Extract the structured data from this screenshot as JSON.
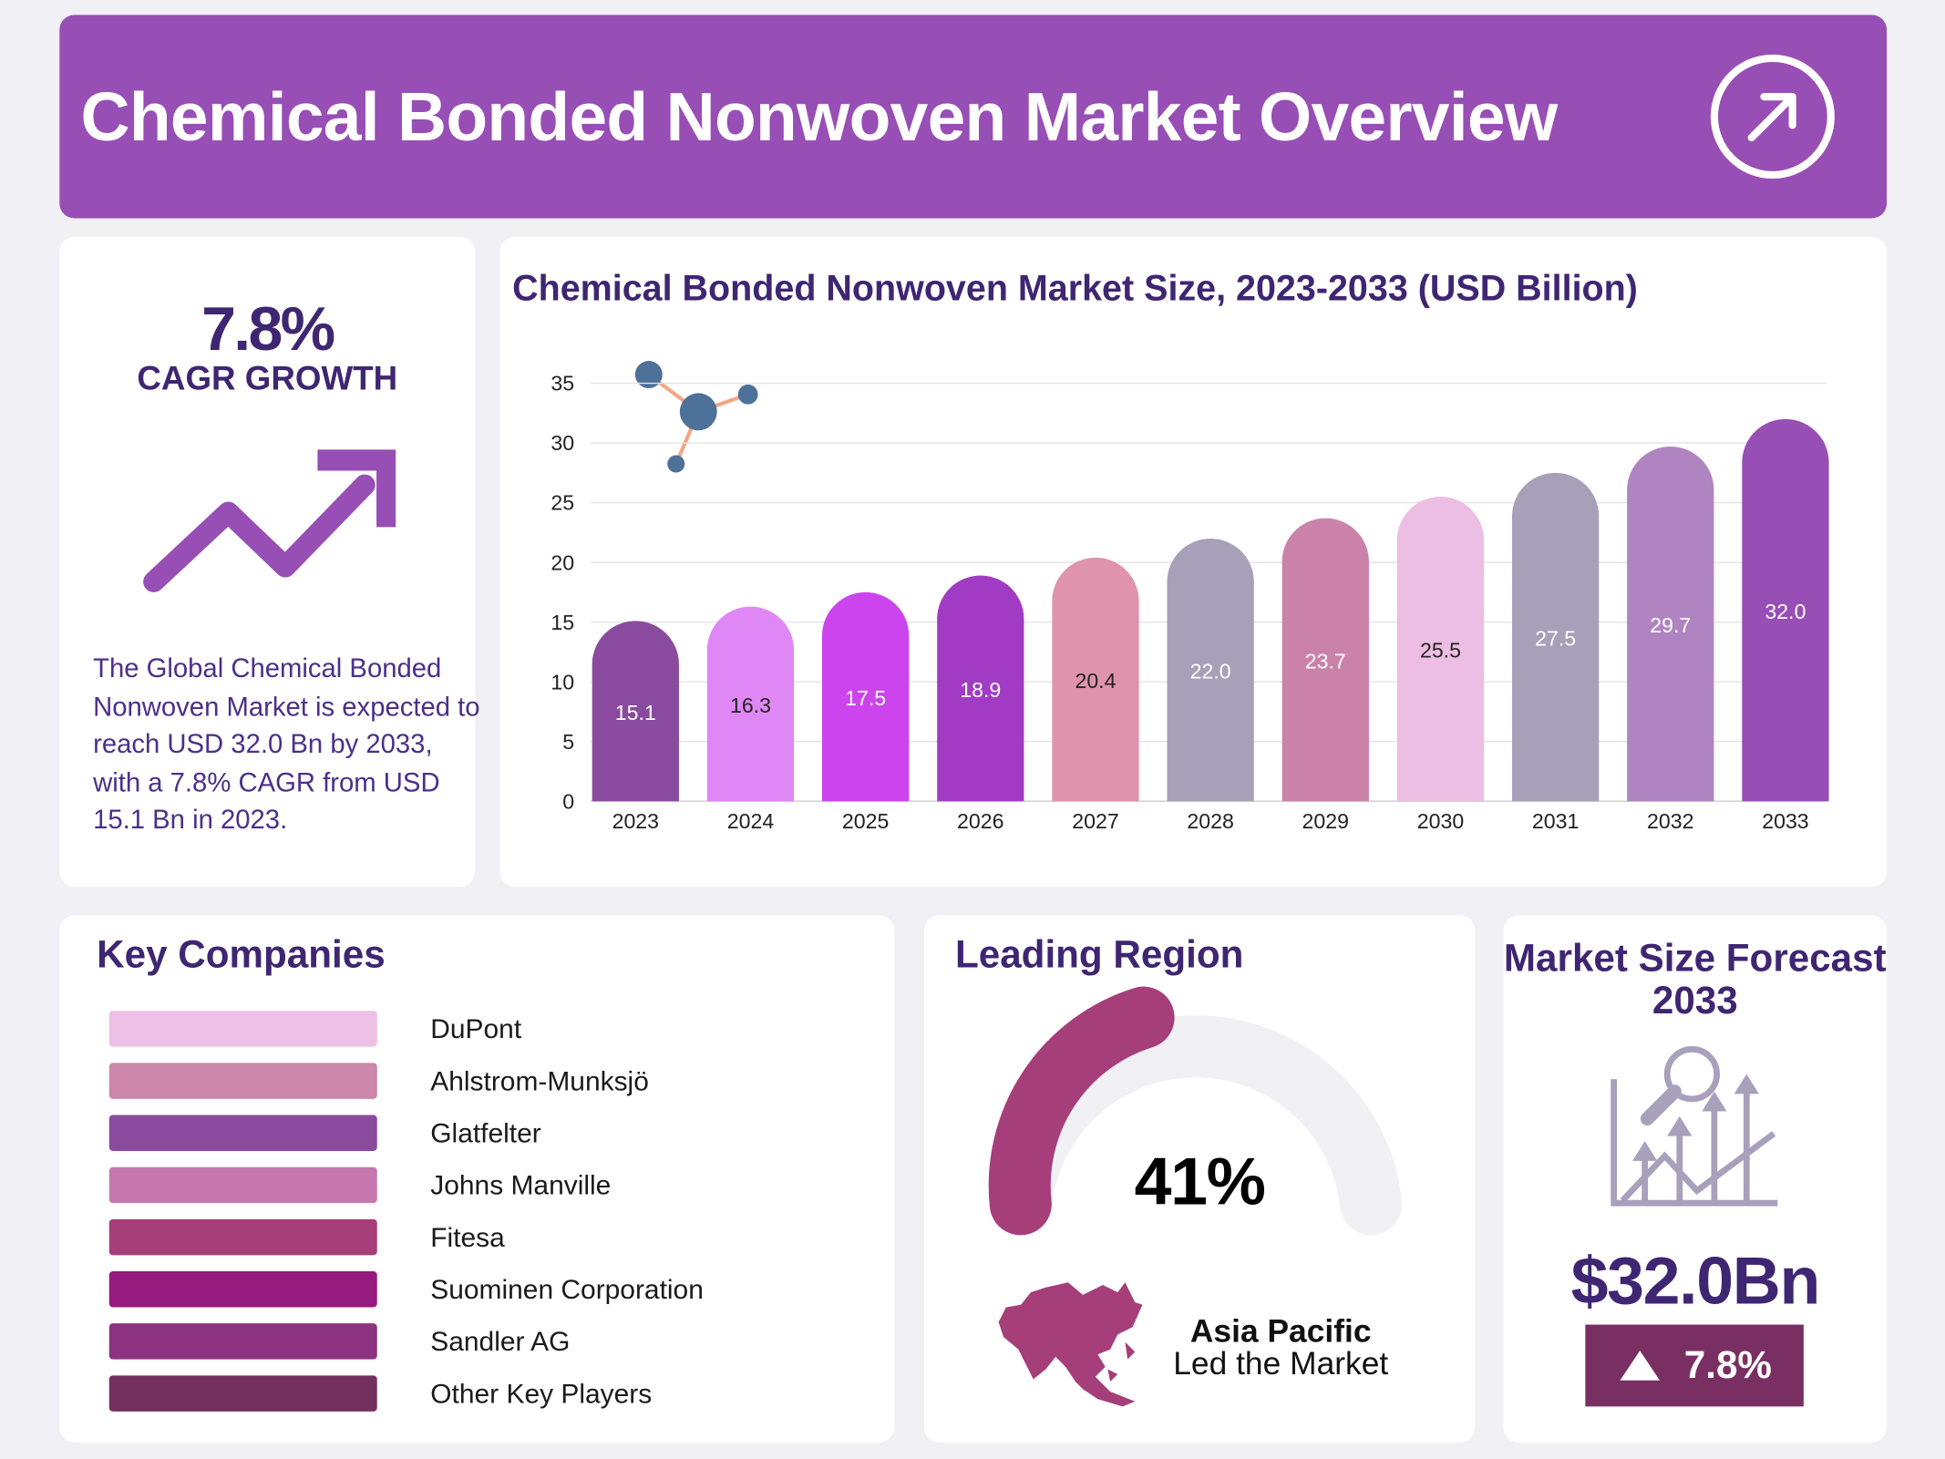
{
  "header": {
    "title": "Chemical Bonded Nonwoven Market Overview",
    "icon": "arrow-up-right-circle-icon"
  },
  "cagr": {
    "value": "7.8%",
    "label": "CAGR GROWTH",
    "icon": "trend-up-arrow-icon",
    "description": "The Global Chemical Bonded Nonwoven Market is expected to reach USD 32.0 Bn by 2033, with a 7.8% CAGR from USD 15.1 Bn in 2023."
  },
  "chart_data": {
    "type": "bar",
    "title": "Chemical Bonded Nonwoven Market Size, 2023-2033 (USD Billion)",
    "xlabel": "",
    "ylabel": "",
    "categories": [
      "2023",
      "2024",
      "2025",
      "2026",
      "2027",
      "2028",
      "2029",
      "2030",
      "2031",
      "2032",
      "2033"
    ],
    "values": [
      15.1,
      16.3,
      17.5,
      18.9,
      20.4,
      22.0,
      23.7,
      25.5,
      27.5,
      29.7,
      32.0
    ],
    "labels": [
      "15.1",
      "16.3",
      "17.5",
      "18.9",
      "20.4",
      "22.0",
      "23.7",
      "25.5",
      "27.5",
      "29.7",
      "32.0"
    ],
    "ylim": [
      0,
      35
    ],
    "yticks": [
      "0",
      "5",
      "10",
      "15",
      "20",
      "25",
      "30",
      "35"
    ],
    "grid": true,
    "bar_colors": [
      "#8A4A9E",
      "#DF88F5",
      "#CC44EE",
      "#A23BC4",
      "#DF93AD",
      "#A89FB8",
      "#CB82A8",
      "#EDBEE3",
      "#A89FB8",
      "#B084C0",
      "#974EB5"
    ],
    "label_colors": [
      "#ffffff",
      "#222222",
      "#ffffff",
      "#ffffff",
      "#222222",
      "#ffffff",
      "#ffffff",
      "#222222",
      "#ffffff",
      "#ffffff",
      "#ffffff"
    ],
    "decoration_icon": "molecule-icon"
  },
  "companies": {
    "title": "Key Companies",
    "items": [
      {
        "name": "DuPont",
        "color": "#EDC0E5"
      },
      {
        "name": "Ahlstrom-Munksjö",
        "color": "#CC86AA"
      },
      {
        "name": "Glatfelter",
        "color": "#8A4A9E"
      },
      {
        "name": "Johns Manville",
        "color": "#C678AE"
      },
      {
        "name": "Fitesa",
        "color": "#A63E7A"
      },
      {
        "name": "Suominen Corporation",
        "color": "#951B7E"
      },
      {
        "name": "Sandler AG",
        "color": "#8C3280"
      },
      {
        "name": "Other Key Players",
        "color": "#73305E"
      }
    ]
  },
  "region": {
    "title": "Leading Region",
    "percent": "41%",
    "share": 41,
    "name": "Asia Pacific",
    "subtitle": "Led the Market",
    "gauge_color": "#A63E7A",
    "track_color": "#F0F0F5",
    "icon": "asia-pacific-map-icon"
  },
  "forecast": {
    "title": "Market Size Forecast 2033",
    "value": "$32.0Bn",
    "growth": "7.8%",
    "icon": "growth-chart-magnifier-icon",
    "badge_color": "#7A2F63"
  }
}
